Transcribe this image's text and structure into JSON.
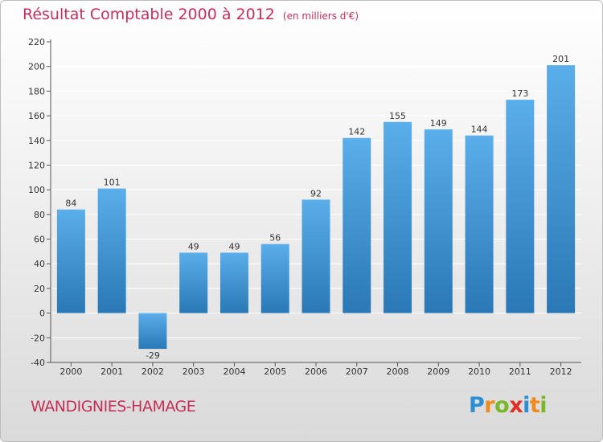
{
  "title": {
    "main": "Résultat Comptable 2000 à 2012",
    "unit": "(en milliers d'€)"
  },
  "commune": "WANDIGNIES-HAMAGE",
  "logo": {
    "text": "Proxiti",
    "letters": [
      {
        "char": "P",
        "color": "#2a8fd4"
      },
      {
        "char": "r",
        "color": "#f08a1c"
      },
      {
        "char": "o",
        "color": "#7ab829"
      },
      {
        "char": "x",
        "color": "#e0302a"
      },
      {
        "char": "i",
        "color": "#2a8fd4"
      },
      {
        "char": "t",
        "color": "#f08a1c"
      },
      {
        "char": "i",
        "color": "#7ab829"
      }
    ]
  },
  "colors": {
    "bar_top": "#5aaeea",
    "bar_bottom": "#2a78b6",
    "title": "#c4305a",
    "grid": "#ffffff"
  },
  "chart_data": {
    "type": "bar",
    "title": "Résultat Comptable 2000 à 2012",
    "subtitle": "(en milliers d'€)",
    "xlabel": "",
    "ylabel": "",
    "categories": [
      "2000",
      "2001",
      "2002",
      "2003",
      "2004",
      "2005",
      "2006",
      "2007",
      "2008",
      "2009",
      "2010",
      "2011",
      "2012"
    ],
    "values": [
      84,
      101,
      -29,
      49,
      49,
      56,
      92,
      142,
      155,
      149,
      144,
      173,
      201
    ],
    "ylim": [
      -40,
      220
    ],
    "yticks": [
      -40,
      -20,
      0,
      20,
      40,
      60,
      80,
      100,
      120,
      140,
      160,
      180,
      200,
      220
    ],
    "grid": true,
    "legend": "none"
  }
}
